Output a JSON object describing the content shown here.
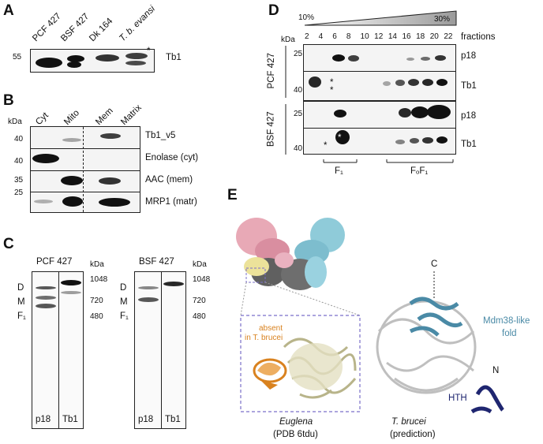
{
  "panels": {
    "A": {
      "letter": "A",
      "lanes": [
        "PCF 427",
        "BSF 427",
        "Dk 164",
        "T. b. evansi"
      ],
      "mw": "55",
      "asterisk": "*",
      "target": "Tb1"
    },
    "B": {
      "letter": "B",
      "kda": "kDa",
      "lanes": [
        "Cyt",
        "Mito",
        "Mem",
        "Matrix"
      ],
      "rows": [
        {
          "mw": "40",
          "label": "Tb1_v5"
        },
        {
          "mw": "40",
          "label": "Enolase (cyt)"
        },
        {
          "mw": "35",
          "label": "AAC (mem)"
        },
        {
          "mw": "25",
          "label": "MRP1 (matr)"
        }
      ]
    },
    "C": {
      "letter": "C",
      "blots": [
        {
          "title": "PCF 427",
          "lanes": [
            "p18",
            "Tb1"
          ]
        },
        {
          "title": "BSF 427",
          "lanes": [
            "p18",
            "Tb1"
          ]
        }
      ],
      "kda": "kDa",
      "markers": [
        "1048",
        "720",
        "480"
      ],
      "complexes": [
        "D",
        "M",
        "F₁"
      ]
    },
    "D": {
      "letter": "D",
      "gradient_start": "10%",
      "gradient_end": "30%",
      "kda": "kDa",
      "fractions": [
        "2",
        "4",
        "6",
        "8",
        "10",
        "12",
        "14",
        "16",
        "18",
        "20",
        "22"
      ],
      "fractions_label": "fractions",
      "groups": [
        {
          "name": "PCF 427",
          "rows": [
            {
              "mw": "25",
              "label": "p18"
            },
            {
              "mw": "40",
              "label": "Tb1"
            }
          ]
        },
        {
          "name": "BSF 427",
          "rows": [
            {
              "mw": "25",
              "label": "p18"
            },
            {
              "mw": "40",
              "label": "Tb1"
            }
          ]
        }
      ],
      "asterisk": "*",
      "bracket_f1": "F₁",
      "bracket_fof1": "FₒF₁"
    },
    "E": {
      "letter": "E",
      "inset_note_line1": "absent",
      "inset_note_line2": "in T. brucei",
      "left_caption_1": "Euglena",
      "left_caption_2": "(PDB 6tdu)",
      "right_caption_1": "T. brucei",
      "right_caption_2": "(prediction)",
      "c_term": "C",
      "n_term": "N",
      "fold_line1": "Mdm38-like",
      "fold_line2": "fold",
      "hth": "HTH"
    }
  },
  "colors": {
    "fold": "#4a8aa6",
    "hth": "#1f2670",
    "absent": "#d9821f",
    "inset_border": "#7a6fc9",
    "euglena_ribbon": "#d9d7b6"
  }
}
